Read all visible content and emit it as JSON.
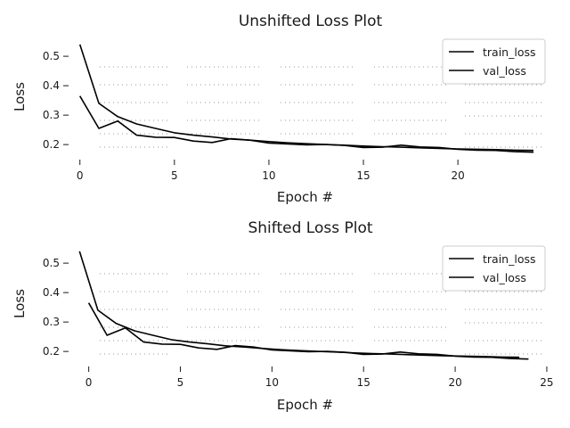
{
  "chart_data": [
    {
      "type": "line",
      "title": "Unshifted Loss Plot",
      "xlabel": "Epoch #",
      "ylabel": "Loss",
      "xlim": [
        -0.6,
        24.8
      ],
      "ylim": [
        0.155,
        0.57
      ],
      "xticks": [
        0,
        5,
        10,
        15,
        20
      ],
      "yticks": [
        0.2,
        0.3,
        0.4,
        0.5
      ],
      "legend": "top-right",
      "series": [
        {
          "name": "train_loss",
          "x_offset": 0,
          "values": [
            0.54,
            0.34,
            0.295,
            0.27,
            0.255,
            0.24,
            0.232,
            0.226,
            0.219,
            0.215,
            0.21,
            0.206,
            0.203,
            0.2,
            0.198,
            0.195,
            0.193,
            0.191,
            0.189,
            0.187,
            0.185,
            0.184,
            0.183,
            0.181,
            0.18
          ]
        },
        {
          "name": "val_loss",
          "x_offset": 0,
          "values": [
            0.365,
            0.255,
            0.28,
            0.232,
            0.225,
            0.224,
            0.212,
            0.207,
            0.22,
            0.215,
            0.205,
            0.202,
            0.199,
            0.2,
            0.197,
            0.19,
            0.191,
            0.198,
            0.192,
            0.19,
            0.184,
            0.181,
            0.18,
            0.176,
            0.174
          ]
        }
      ]
    },
    {
      "type": "line",
      "title": "Shifted Loss Plot",
      "xlabel": "Epoch #",
      "ylabel": "Loss",
      "xlim": [
        -1.1,
        25.1
      ],
      "ylim": [
        0.155,
        0.57
      ],
      "xticks": [
        0,
        5,
        10,
        15,
        20,
        25
      ],
      "yticks": [
        0.2,
        0.3,
        0.4,
        0.5
      ],
      "legend": "top-right",
      "series": [
        {
          "name": "train_loss",
          "x_offset": -0.5,
          "values": [
            0.54,
            0.34,
            0.295,
            0.27,
            0.255,
            0.24,
            0.232,
            0.226,
            0.219,
            0.215,
            0.21,
            0.206,
            0.203,
            0.2,
            0.198,
            0.195,
            0.193,
            0.191,
            0.189,
            0.187,
            0.185,
            0.184,
            0.183,
            0.181,
            0.18
          ]
        },
        {
          "name": "val_loss",
          "x_offset": 0,
          "values": [
            0.365,
            0.255,
            0.28,
            0.232,
            0.225,
            0.224,
            0.212,
            0.207,
            0.22,
            0.215,
            0.205,
            0.202,
            0.199,
            0.2,
            0.197,
            0.19,
            0.191,
            0.198,
            0.192,
            0.19,
            0.184,
            0.181,
            0.18,
            0.176,
            0.174
          ]
        }
      ]
    }
  ]
}
